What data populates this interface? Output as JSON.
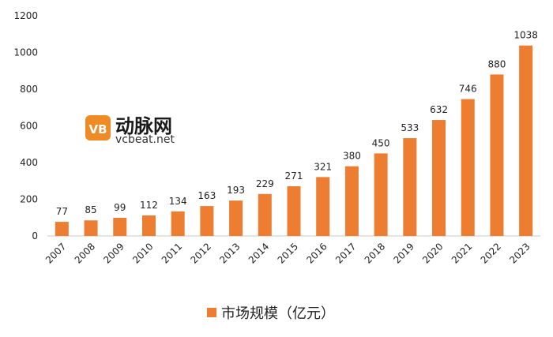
{
  "chart_data": {
    "type": "bar",
    "categories": [
      "2007",
      "2008",
      "2009",
      "2010",
      "2011",
      "2012",
      "2013",
      "2014",
      "2015",
      "2016",
      "2017",
      "2018",
      "2019",
      "2020",
      "2021",
      "2022",
      "2023"
    ],
    "series": [
      {
        "name": "市场规模（亿元）",
        "values": [
          77,
          85,
          99,
          112,
          134,
          163,
          193,
          229,
          271,
          321,
          380,
          450,
          533,
          632,
          746,
          880,
          1038
        ]
      }
    ],
    "ylim": [
      0,
      1200
    ],
    "yticks": [
      0,
      200,
      400,
      600,
      800,
      1000,
      1200
    ],
    "grid": false,
    "legend_position": "bottom-center",
    "bar_color": "#ED7D31"
  },
  "watermark": {
    "logo_letter": "VB",
    "name": "动脉网",
    "site": "vcbeat.net"
  }
}
